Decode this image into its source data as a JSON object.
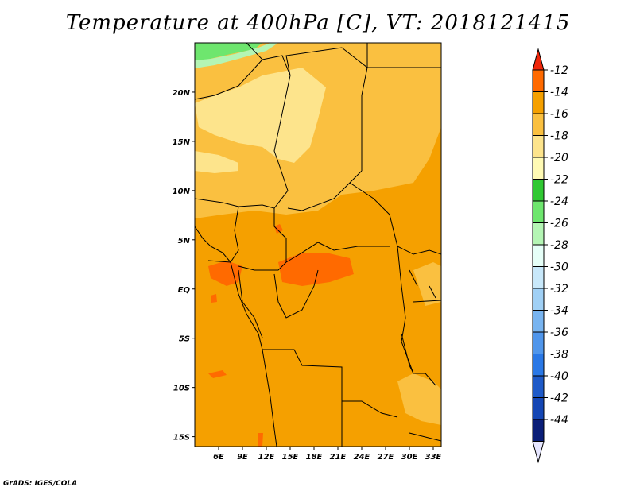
{
  "title": "Temperature at 400hPa [C], VT: 2018121415",
  "credit": "GrADS: IGES/COLA",
  "map": {
    "lat_range": [
      -16,
      25
    ],
    "lon_range": [
      3,
      34
    ],
    "lat_ticks": [
      "20N",
      "15N",
      "10N",
      "5N",
      "EQ",
      "5S",
      "10S",
      "15S"
    ],
    "lon_ticks": [
      "6E",
      "9E",
      "12E",
      "15E",
      "18E",
      "21E",
      "24E",
      "27E",
      "30E",
      "33E"
    ],
    "background_color": "#f5a000"
  },
  "colorbar": {
    "labels": [
      "-12",
      "-14",
      "-16",
      "-18",
      "-20",
      "-22",
      "-24",
      "-26",
      "-28",
      "-30",
      "-32",
      "-34",
      "-36",
      "-38",
      "-40",
      "-42",
      "-44"
    ],
    "colors": [
      "#f0260a",
      "#ff6a00",
      "#f5a000",
      "#fac040",
      "#fde48c",
      "#fffab4",
      "#2fc832",
      "#6ee66e",
      "#b4f5b4",
      "#e6fff8",
      "#c8e8fa",
      "#a0d0f5",
      "#78b4f0",
      "#5096eb",
      "#2a78e6",
      "#1e5ac8",
      "#1446b4",
      "#0a1e78",
      "#e6e6ff"
    ]
  }
}
